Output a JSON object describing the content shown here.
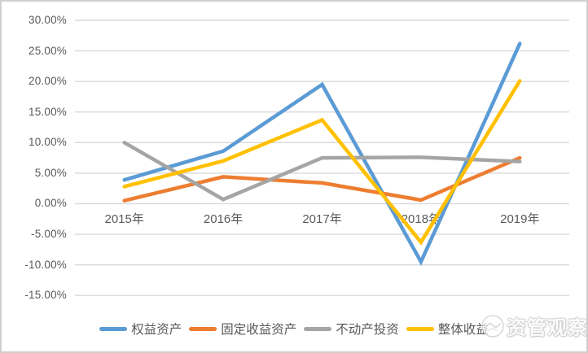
{
  "chart_data": {
    "type": "line",
    "title": "",
    "xlabel": "",
    "ylabel": "",
    "categories": [
      "2015年",
      "2016年",
      "2017年",
      "2018年",
      "2019年"
    ],
    "series": [
      {
        "name": "权益资产",
        "color": "#5B9BD5",
        "values": [
          3.9,
          8.6,
          19.5,
          -9.5,
          26.2
        ]
      },
      {
        "name": "固定收益资产",
        "color": "#ED7D31",
        "values": [
          0.5,
          4.4,
          3.4,
          0.6,
          7.5
        ]
      },
      {
        "name": "不动产投资",
        "color": "#A5A5A5",
        "values": [
          10.0,
          0.7,
          7.5,
          7.6,
          6.9
        ]
      },
      {
        "name": "整体收益",
        "color": "#FFC000",
        "values": [
          2.8,
          7.0,
          13.7,
          -6.3,
          20.1
        ]
      }
    ],
    "ylim": [
      -15,
      30
    ],
    "ystep": 5,
    "ytick_labels": [
      "30.00%",
      "25.00%",
      "20.00%",
      "15.00%",
      "10.00%",
      "5.00%",
      "0.00%",
      "-5.00%",
      "-10.00%",
      "-15.00%"
    ],
    "grid": "horizontal",
    "gridline_color": "#D9D9D9",
    "tick_text_color": "#595959",
    "legend_position": "bottom",
    "line_width": 4.5
  },
  "watermark": {
    "text": "资管观察",
    "logo": "circle-swirl-logo"
  },
  "frame": {
    "background": "#FFFFFF",
    "border_color": "#CFCFCF"
  }
}
